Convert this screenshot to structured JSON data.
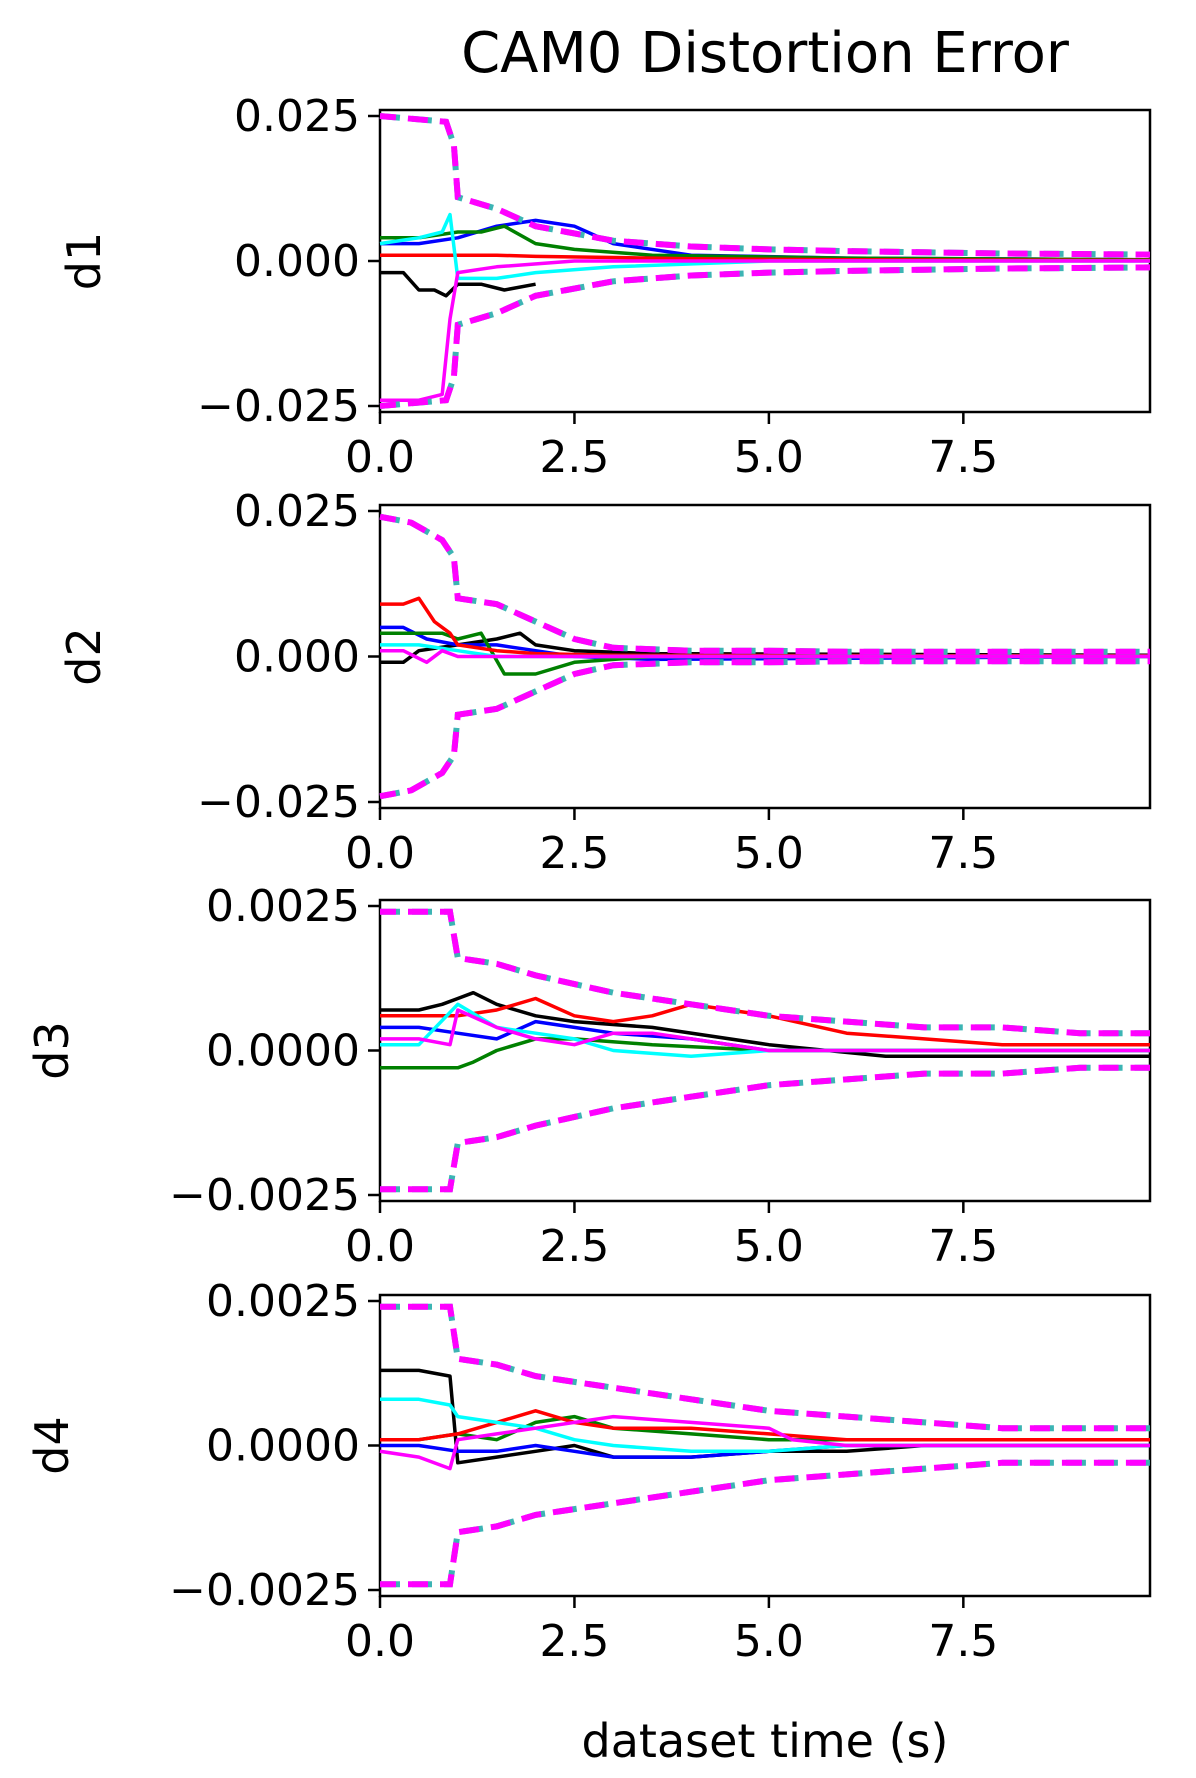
{
  "title": "CAM0 Distortion Error",
  "xlabel": "dataset time (s)",
  "chart_data": [
    {
      "type": "line",
      "ylabel": "d1",
      "xlim": [
        0,
        9.9
      ],
      "ylim": [
        -0.025,
        0.025
      ],
      "yticks": [
        "0.025",
        "0.000",
        "−0.025"
      ],
      "ytick_values": [
        0.025,
        0,
        -0.025
      ],
      "xticks": [
        "0.0",
        "2.5",
        "5.0",
        "7.5"
      ],
      "xtick_values": [
        0,
        2.5,
        5,
        7.5
      ],
      "bound": {
        "x": [
          0,
          0.85,
          0.95,
          1.0,
          1.5,
          2.0,
          3.0,
          4.0,
          5.0,
          6.0,
          7.0,
          8.0,
          9.0,
          9.9
        ],
        "upper": [
          0.025,
          0.024,
          0.02,
          0.011,
          0.009,
          0.006,
          0.0035,
          0.0025,
          0.002,
          0.0017,
          0.0015,
          0.0013,
          0.0012,
          0.0011
        ]
      },
      "series": [
        {
          "color": "#000000",
          "x": [
            0,
            0.3,
            0.5,
            0.7,
            0.85,
            1.0,
            1.3,
            1.6,
            2.0
          ],
          "y": [
            -0.002,
            -0.002,
            -0.005,
            -0.005,
            -0.006,
            -0.004,
            -0.004,
            -0.005,
            -0.004
          ]
        },
        {
          "color": "#0000ff",
          "x": [
            0,
            0.5,
            1.0,
            1.5,
            2.0,
            2.5,
            3.0,
            4.0,
            6.0,
            9.9
          ],
          "y": [
            0.003,
            0.003,
            0.004,
            0.006,
            0.007,
            0.006,
            0.003,
            0.001,
            0.0005,
            0.0002
          ]
        },
        {
          "color": "#008000",
          "x": [
            0,
            0.5,
            1.0,
            1.3,
            1.6,
            2.0,
            2.5,
            3.5,
            6.0,
            9.9
          ],
          "y": [
            0.004,
            0.004,
            0.005,
            0.005,
            0.006,
            0.003,
            0.002,
            0.001,
            0.0005,
            0.0002
          ]
        },
        {
          "color": "#ff0000",
          "x": [
            0,
            0.5,
            1.0,
            1.5,
            2.0,
            3.0,
            4.0,
            6.0,
            9.9
          ],
          "y": [
            0.001,
            0.001,
            0.001,
            0.001,
            0.0008,
            0.0006,
            0.0004,
            0.0002,
            0.0001
          ]
        },
        {
          "color": "#00ffff",
          "x": [
            0,
            0.5,
            0.8,
            0.9,
            1.0,
            1.5,
            2.0,
            3.0,
            5.0,
            9.9
          ],
          "y": [
            0.003,
            0.004,
            0.005,
            0.008,
            -0.003,
            -0.003,
            -0.002,
            -0.001,
            0,
            0
          ]
        },
        {
          "color": "#ff00ff",
          "x": [
            0,
            0.5,
            0.8,
            0.9,
            1.0,
            1.5,
            2.5,
            4.0,
            9.9
          ],
          "y": [
            -0.024,
            -0.024,
            -0.023,
            -0.01,
            -0.002,
            -0.001,
            0,
            0,
            0
          ]
        }
      ]
    },
    {
      "type": "line",
      "ylabel": "d2",
      "xlim": [
        0,
        9.9
      ],
      "ylim": [
        -0.025,
        0.025
      ],
      "yticks": [
        "0.025",
        "0.000",
        "−0.025"
      ],
      "ytick_values": [
        0.025,
        0,
        -0.025
      ],
      "xticks": [
        "0.0",
        "2.5",
        "5.0",
        "7.5"
      ],
      "xtick_values": [
        0,
        2.5,
        5,
        7.5
      ],
      "bound": {
        "x": [
          0,
          0.4,
          0.8,
          0.95,
          1.0,
          1.5,
          2.0,
          2.5,
          3.0,
          4.0,
          5.0,
          6.0,
          7.0,
          8.0,
          9.0,
          9.9
        ],
        "upper": [
          0.024,
          0.023,
          0.02,
          0.017,
          0.01,
          0.009,
          0.006,
          0.003,
          0.0015,
          0.001,
          0.001,
          0.0008,
          0.0008,
          0.0008,
          0.0008,
          0.0008
        ]
      },
      "series": [
        {
          "color": "#000000",
          "x": [
            0,
            0.3,
            0.5,
            1.0,
            1.5,
            1.8,
            2.0,
            2.5,
            3.5,
            9.9
          ],
          "y": [
            -0.001,
            -0.001,
            0.001,
            0.002,
            0.003,
            0.004,
            0.002,
            0.001,
            0.0005,
            0.0002
          ]
        },
        {
          "color": "#0000ff",
          "x": [
            0,
            0.3,
            0.6,
            1.0,
            1.5,
            2.0,
            2.5,
            3.5,
            9.9
          ],
          "y": [
            0.005,
            0.005,
            0.003,
            0.002,
            0.002,
            0.001,
            0,
            -0.0005,
            0
          ]
        },
        {
          "color": "#008000",
          "x": [
            0,
            0.5,
            0.8,
            1.0,
            1.3,
            1.6,
            2.0,
            2.5,
            3.5,
            9.9
          ],
          "y": [
            0.004,
            0.004,
            0.004,
            0.003,
            0.004,
            -0.003,
            -0.003,
            -0.001,
            0,
            0
          ]
        },
        {
          "color": "#ff0000",
          "x": [
            0,
            0.3,
            0.5,
            0.7,
            0.9,
            1.0,
            1.5,
            2.0,
            3.0,
            9.9
          ],
          "y": [
            0.009,
            0.009,
            0.01,
            0.006,
            0.004,
            0.002,
            0.001,
            0.0005,
            0.0002,
            0.0001
          ]
        },
        {
          "color": "#00ffff",
          "x": [
            0,
            0.5,
            1.0,
            1.5,
            2.0,
            2.5,
            3.0,
            9.9
          ],
          "y": [
            0.002,
            0.002,
            0.001,
            0,
            0,
            0,
            0,
            0
          ]
        },
        {
          "color": "#ff00ff",
          "x": [
            0,
            0.3,
            0.6,
            0.8,
            1.0,
            1.5,
            2.0,
            3.0,
            9.9
          ],
          "y": [
            0.001,
            0.001,
            -0.001,
            0.001,
            0,
            0,
            0,
            0,
            0
          ]
        }
      ]
    },
    {
      "type": "line",
      "ylabel": "d3",
      "xlim": [
        0,
        9.9
      ],
      "ylim": [
        -0.0025,
        0.0025
      ],
      "yticks": [
        "0.0025",
        "0.0000",
        "−0.0025"
      ],
      "ytick_values": [
        0.0025,
        0,
        -0.0025
      ],
      "xticks": [
        "0.0",
        "2.5",
        "5.0",
        "7.5"
      ],
      "xtick_values": [
        0,
        2.5,
        5,
        7.5
      ],
      "bound": {
        "x": [
          0,
          0.9,
          1.0,
          1.5,
          2.0,
          3.0,
          4.0,
          5.0,
          6.0,
          7.0,
          8.0,
          9.0,
          9.9
        ],
        "upper": [
          0.0024,
          0.0024,
          0.0016,
          0.0015,
          0.0013,
          0.001,
          0.0008,
          0.0006,
          0.0005,
          0.0004,
          0.0004,
          0.0003,
          0.0003
        ]
      },
      "series": [
        {
          "color": "#000000",
          "x": [
            0,
            0.5,
            0.8,
            1.0,
            1.2,
            1.5,
            2.0,
            2.5,
            3.5,
            5.0,
            6.5,
            8.0,
            9.9
          ],
          "y": [
            0.0007,
            0.0007,
            0.0008,
            0.0009,
            0.001,
            0.0008,
            0.0006,
            0.0005,
            0.0004,
            0.0001,
            -0.0001,
            -0.0001,
            -0.0001
          ]
        },
        {
          "color": "#0000ff",
          "x": [
            0,
            0.5,
            1.0,
            1.5,
            2.0,
            2.5,
            3.0,
            4.0,
            5.0,
            9.9
          ],
          "y": [
            0.0004,
            0.0004,
            0.0003,
            0.0002,
            0.0005,
            0.0004,
            0.0003,
            0.0002,
            0,
            0
          ]
        },
        {
          "color": "#008000",
          "x": [
            0,
            0.5,
            1.0,
            1.2,
            1.5,
            2.0,
            2.5,
            3.5,
            5.0,
            9.9
          ],
          "y": [
            -0.0003,
            -0.0003,
            -0.0003,
            -0.0002,
            0,
            0.0002,
            0.0002,
            0.0001,
            0,
            0
          ]
        },
        {
          "color": "#ff0000",
          "x": [
            0,
            0.5,
            1.0,
            1.5,
            2.0,
            2.5,
            3.0,
            3.5,
            4.0,
            5.0,
            6.0,
            7.0,
            8.0,
            9.9
          ],
          "y": [
            0.0006,
            0.0006,
            0.0006,
            0.0007,
            0.0009,
            0.0006,
            0.0005,
            0.0006,
            0.0008,
            0.0006,
            0.0003,
            0.0002,
            0.0001,
            0.0001
          ]
        },
        {
          "color": "#00ffff",
          "x": [
            0,
            0.5,
            1.0,
            1.5,
            2.0,
            2.5,
            3.0,
            4.0,
            5.0,
            9.9
          ],
          "y": [
            0.0001,
            0.0001,
            0.0008,
            0.0004,
            0.0003,
            0.0002,
            0,
            -0.0001,
            0,
            0
          ]
        },
        {
          "color": "#ff00ff",
          "x": [
            0,
            0.5,
            0.9,
            1.0,
            1.5,
            2.0,
            2.5,
            3.0,
            3.5,
            4.0,
            5.0,
            9.9
          ],
          "y": [
            0.0002,
            0.0002,
            0.0001,
            0.0007,
            0.0004,
            0.0002,
            0.0001,
            0.0003,
            0.0003,
            0.0002,
            0,
            0
          ]
        }
      ]
    },
    {
      "type": "line",
      "ylabel": "d4",
      "xlim": [
        0,
        9.9
      ],
      "ylim": [
        -0.0025,
        0.0025
      ],
      "yticks": [
        "0.0025",
        "0.0000",
        "−0.0025"
      ],
      "ytick_values": [
        0.0025,
        0,
        -0.0025
      ],
      "xticks": [
        "0.0",
        "2.5",
        "5.0",
        "7.5"
      ],
      "xtick_values": [
        0,
        2.5,
        5,
        7.5
      ],
      "bound": {
        "x": [
          0,
          0.9,
          1.0,
          1.5,
          2.0,
          3.0,
          4.0,
          5.0,
          6.0,
          7.0,
          8.0,
          9.0,
          9.9
        ],
        "upper": [
          0.0024,
          0.0024,
          0.0015,
          0.0014,
          0.0012,
          0.001,
          0.0008,
          0.0006,
          0.0005,
          0.0004,
          0.0003,
          0.0003,
          0.0003
        ]
      },
      "series": [
        {
          "color": "#000000",
          "x": [
            0,
            0.5,
            0.9,
            1.0,
            1.5,
            2.0,
            2.5,
            3.0,
            4.0,
            5.0,
            6.0,
            7.0,
            9.9
          ],
          "y": [
            0.0013,
            0.0013,
            0.0012,
            -0.0003,
            -0.0002,
            -0.0001,
            0,
            -0.0002,
            -0.0002,
            -0.0001,
            -0.0001,
            0,
            0
          ]
        },
        {
          "color": "#0000ff",
          "x": [
            0,
            0.5,
            1.0,
            1.5,
            2.0,
            2.5,
            3.0,
            4.0,
            5.0,
            6.0,
            9.9
          ],
          "y": [
            0,
            0,
            -0.0001,
            -0.0001,
            0,
            -0.0001,
            -0.0002,
            -0.0002,
            -0.0001,
            0,
            0
          ]
        },
        {
          "color": "#008000",
          "x": [
            0,
            0.5,
            1.0,
            1.5,
            2.0,
            2.5,
            3.0,
            4.0,
            5.0,
            9.9
          ],
          "y": [
            0.0001,
            0.0001,
            0.0002,
            0.0001,
            0.0004,
            0.0005,
            0.0003,
            0.0002,
            0.0001,
            0.0001
          ]
        },
        {
          "color": "#ff0000",
          "x": [
            0,
            0.5,
            1.0,
            1.5,
            2.0,
            2.5,
            3.0,
            4.0,
            5.0,
            6.0,
            9.9
          ],
          "y": [
            0.0001,
            0.0001,
            0.0002,
            0.0004,
            0.0006,
            0.0004,
            0.0003,
            0.0003,
            0.0002,
            0.0001,
            0.0001
          ]
        },
        {
          "color": "#00ffff",
          "x": [
            0,
            0.5,
            0.9,
            1.0,
            1.5,
            2.0,
            2.5,
            3.0,
            4.0,
            5.0,
            6.0,
            9.9
          ],
          "y": [
            0.0008,
            0.0008,
            0.0007,
            0.0005,
            0.0004,
            0.0003,
            0.0001,
            0,
            -0.0001,
            -0.0001,
            0,
            0
          ]
        },
        {
          "color": "#ff00ff",
          "x": [
            0,
            0.5,
            0.9,
            1.0,
            1.5,
            2.0,
            3.0,
            4.0,
            5.0,
            5.3,
            6.0,
            9.9
          ],
          "y": [
            -0.0001,
            -0.0002,
            -0.0004,
            0.0001,
            0.0002,
            0.0003,
            0.0005,
            0.0004,
            0.0003,
            0.0001,
            0,
            0
          ]
        }
      ]
    }
  ]
}
